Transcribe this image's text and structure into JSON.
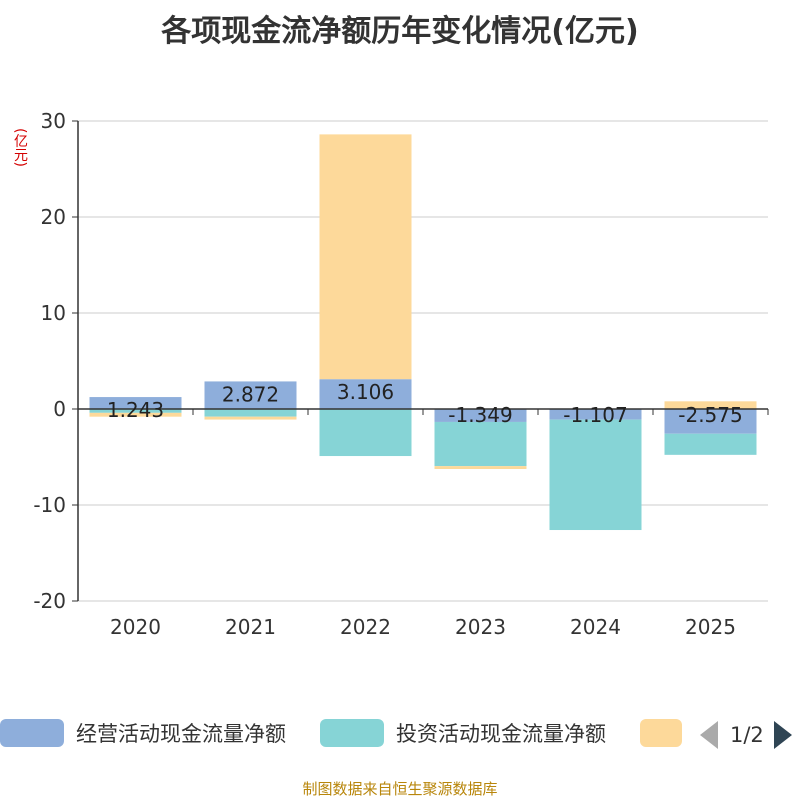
{
  "title": "各项现金流净额历年变化情况(亿元)",
  "unit_label": "(亿元)",
  "source": "制图数据来自恒生聚源数据库",
  "pagination": {
    "label": "1/2"
  },
  "colors": {
    "operating": "#8eaedb",
    "investing": "#86d4d6",
    "financing": "#fdd99a",
    "axis": "#333333",
    "grid": "#cccccc",
    "title": "#333333",
    "unit": "#d40000",
    "source": "#b8860b"
  },
  "chart_data": {
    "type": "bar",
    "stacked": true,
    "title": "各项现金流净额历年变化情况(亿元)",
    "ylabel": "(亿元)",
    "ylim": [
      -20,
      30
    ],
    "yticks": [
      30,
      20,
      10,
      0,
      -10,
      -20
    ],
    "grid": true,
    "legend_position": "bottom",
    "categories": [
      "2020",
      "2021",
      "2022",
      "2023",
      "2024",
      "2025"
    ],
    "series": [
      {
        "name": "经营活动现金流量净额",
        "color": "#8eaedb",
        "values": [
          1.243,
          2.872,
          3.106,
          -1.349,
          -1.107,
          -2.575
        ],
        "labels": [
          "1.243",
          "2.872",
          "3.106",
          "-1.349",
          "-1.107",
          "-2.575"
        ]
      },
      {
        "name": "投资活动现金流量净额",
        "color": "#86d4d6",
        "values": [
          -0.4,
          -0.8,
          -4.9,
          -4.6,
          -11.5,
          -2.2
        ]
      },
      {
        "name": "",
        "color": "#fdd99a",
        "values": [
          -0.4,
          -0.3,
          25.5,
          -0.3,
          0.0,
          0.8
        ]
      }
    ]
  }
}
